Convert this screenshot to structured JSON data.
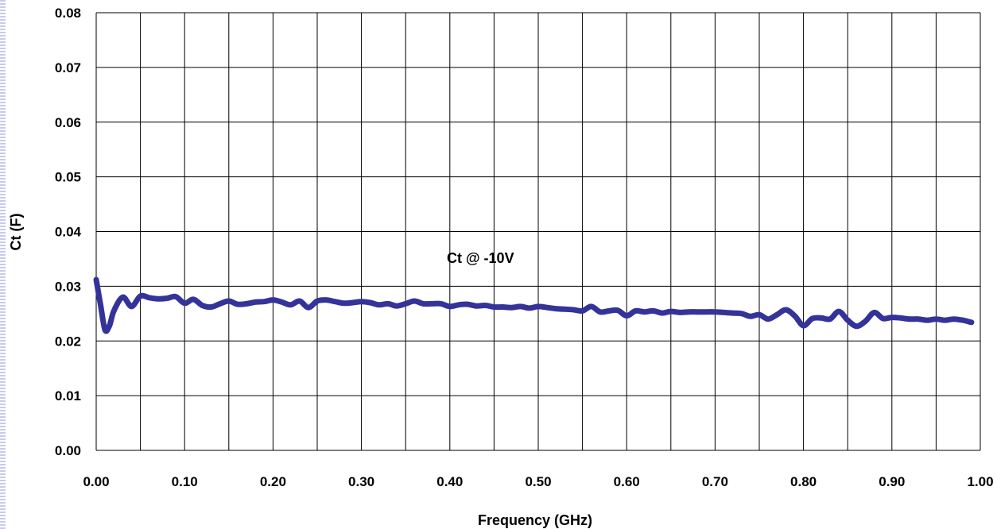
{
  "chart_data": {
    "type": "line",
    "title": "",
    "xlabel": "Frequency (GHz)",
    "ylabel": "Ct (F)",
    "xlim": [
      0,
      1.0
    ],
    "ylim": [
      0,
      0.08
    ],
    "xticks": [
      "0.00",
      "0.10",
      "0.20",
      "0.30",
      "0.40",
      "0.50",
      "0.60",
      "0.70",
      "0.80",
      "0.90",
      "1.00"
    ],
    "yticks": [
      "0.00",
      "0.01",
      "0.02",
      "0.03",
      "0.04",
      "0.05",
      "0.06",
      "0.07",
      "0.08"
    ],
    "grid": true,
    "annotation": "Ct @ -10V",
    "line_color": "#333399",
    "series": [
      {
        "x": [
          0.0,
          0.005,
          0.01,
          0.015,
          0.02,
          0.03,
          0.04,
          0.05,
          0.06,
          0.07,
          0.08,
          0.09,
          0.1,
          0.11,
          0.12,
          0.13,
          0.14,
          0.15,
          0.16,
          0.17,
          0.18,
          0.19,
          0.2,
          0.21,
          0.22,
          0.23,
          0.24,
          0.25,
          0.26,
          0.27,
          0.28,
          0.29,
          0.3,
          0.31,
          0.32,
          0.33,
          0.34,
          0.35,
          0.36,
          0.37,
          0.38,
          0.39,
          0.4,
          0.41,
          0.42,
          0.43,
          0.44,
          0.45,
          0.46,
          0.47,
          0.48,
          0.49,
          0.5,
          0.51,
          0.52,
          0.53,
          0.54,
          0.55,
          0.56,
          0.57,
          0.58,
          0.59,
          0.6,
          0.61,
          0.62,
          0.63,
          0.64,
          0.65,
          0.66,
          0.67,
          0.68,
          0.69,
          0.7,
          0.71,
          0.72,
          0.73,
          0.74,
          0.75,
          0.76,
          0.77,
          0.78,
          0.79,
          0.8,
          0.81,
          0.82,
          0.83,
          0.84,
          0.85,
          0.86,
          0.87,
          0.88,
          0.89,
          0.9,
          0.91,
          0.92,
          0.93,
          0.94,
          0.95,
          0.96,
          0.97,
          0.98,
          0.99
        ],
        "values": [
          0.0312,
          0.0265,
          0.022,
          0.0228,
          0.0255,
          0.028,
          0.0263,
          0.0282,
          0.0279,
          0.0277,
          0.0278,
          0.0281,
          0.0269,
          0.0276,
          0.0265,
          0.0262,
          0.0268,
          0.0273,
          0.0267,
          0.0268,
          0.0271,
          0.0272,
          0.0275,
          0.0271,
          0.0266,
          0.0273,
          0.0261,
          0.0273,
          0.0275,
          0.0272,
          0.0269,
          0.027,
          0.0272,
          0.027,
          0.0266,
          0.0268,
          0.0264,
          0.0268,
          0.0273,
          0.0268,
          0.0268,
          0.0268,
          0.0263,
          0.0266,
          0.0267,
          0.0264,
          0.0265,
          0.0262,
          0.0262,
          0.0261,
          0.0263,
          0.026,
          0.0263,
          0.0261,
          0.0259,
          0.0258,
          0.0257,
          0.0255,
          0.0263,
          0.0253,
          0.0255,
          0.0256,
          0.0246,
          0.0255,
          0.0253,
          0.0255,
          0.0251,
          0.0254,
          0.0252,
          0.0253,
          0.0253,
          0.0253,
          0.0253,
          0.0252,
          0.0251,
          0.025,
          0.0245,
          0.0248,
          0.024,
          0.0248,
          0.0257,
          0.0246,
          0.0228,
          0.0241,
          0.0242,
          0.024,
          0.0254,
          0.0238,
          0.0227,
          0.0236,
          0.0252,
          0.0241,
          0.0243,
          0.0242,
          0.024,
          0.024,
          0.0238,
          0.024,
          0.0238,
          0.024,
          0.0238,
          0.0234
        ]
      }
    ]
  }
}
